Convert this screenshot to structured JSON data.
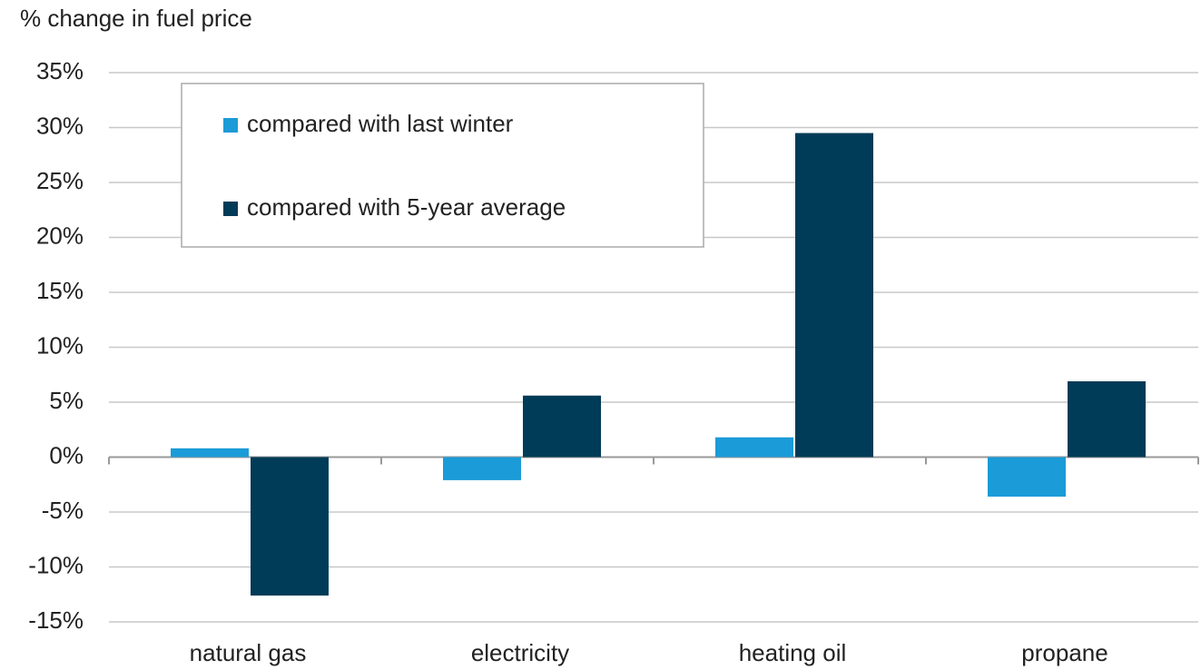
{
  "chart_data": {
    "type": "bar",
    "y_label": "% change in fuel price",
    "categories": [
      "natural gas",
      "electricity",
      "heating oil",
      "propane"
    ],
    "series": [
      {
        "name": "compared with last winter",
        "color": "#1b9bd7",
        "values": [
          0.8,
          -2.1,
          1.8,
          -3.6
        ]
      },
      {
        "name": "compared with 5-year average",
        "color": "#003b57",
        "values": [
          -12.6,
          5.6,
          29.5,
          6.9
        ]
      }
    ],
    "ylim": [
      -15,
      35
    ],
    "yticks": [
      {
        "value": -15,
        "label": "-15%"
      },
      {
        "value": -10,
        "label": "-10%"
      },
      {
        "value": -5,
        "label": "-5%"
      },
      {
        "value": 0,
        "label": "0%"
      },
      {
        "value": 5,
        "label": "5%"
      },
      {
        "value": 10,
        "label": "10%"
      },
      {
        "value": 15,
        "label": "15%"
      },
      {
        "value": 20,
        "label": "20%"
      },
      {
        "value": 25,
        "label": "25%"
      },
      {
        "value": 30,
        "label": "30%"
      },
      {
        "value": 35,
        "label": "35%"
      }
    ],
    "grid": true,
    "legend": "upper left"
  }
}
